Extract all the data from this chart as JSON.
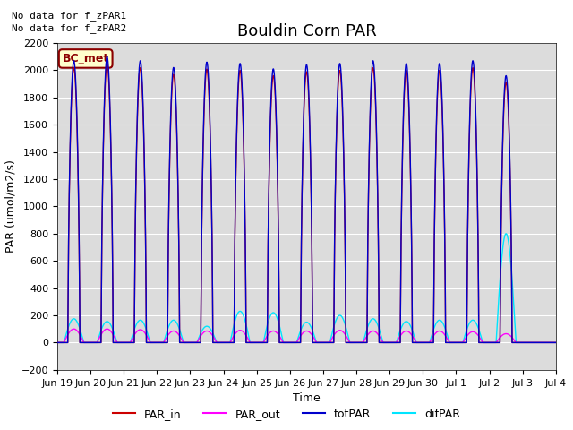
{
  "title": "Bouldin Corn PAR",
  "ylabel": "PAR (umol/m2/s)",
  "xlabel": "Time",
  "ylim": [
    -200,
    2200
  ],
  "yticks": [
    -200,
    0,
    200,
    400,
    600,
    800,
    1000,
    1200,
    1400,
    1600,
    1800,
    2000,
    2200
  ],
  "plot_bg": "#dcdcdc",
  "fig_bg": "#ffffff",
  "annotations": [
    "No data for f_zPAR1",
    "No data for f_zPAR2"
  ],
  "legend_label": "BC_met",
  "legend_bg": "#ffffcc",
  "legend_edge": "#8b0000",
  "lines": {
    "PAR_in": {
      "color": "#cc0000",
      "lw": 1.0
    },
    "PAR_out": {
      "color": "#ff00ff",
      "lw": 1.0
    },
    "totPAR": {
      "color": "#0000cc",
      "lw": 1.0
    },
    "difPAR": {
      "color": "#00e5ff",
      "lw": 1.0
    }
  },
  "n_days": 15,
  "peak_heights": [
    2070,
    2100,
    2070,
    2020,
    2060,
    2050,
    2010,
    2040,
    2050,
    2070,
    2050,
    2050,
    2070,
    1960,
    0
  ],
  "difPAR_peaks": [
    175,
    155,
    165,
    165,
    120,
    230,
    220,
    150,
    200,
    175,
    155,
    165,
    165,
    800,
    0
  ],
  "PAR_out_peaks": [
    100,
    100,
    95,
    85,
    85,
    90,
    85,
    85,
    90,
    85,
    85,
    85,
    80,
    65,
    0
  ],
  "tick_labels": [
    "Jun 19",
    "Jun 20",
    "Jun 21",
    "Jun 22",
    "Jun 23",
    "Jun 24",
    "Jun 25",
    "Jun 26",
    "Jun 27",
    "Jun 28",
    "Jun 29",
    "Jun 30",
    "Jul 1",
    "Jul 2",
    "Jul 3",
    "Jul 4"
  ],
  "title_fontsize": 13,
  "label_fontsize": 9,
  "tick_fontsize": 8,
  "annot_fontsize": 8
}
